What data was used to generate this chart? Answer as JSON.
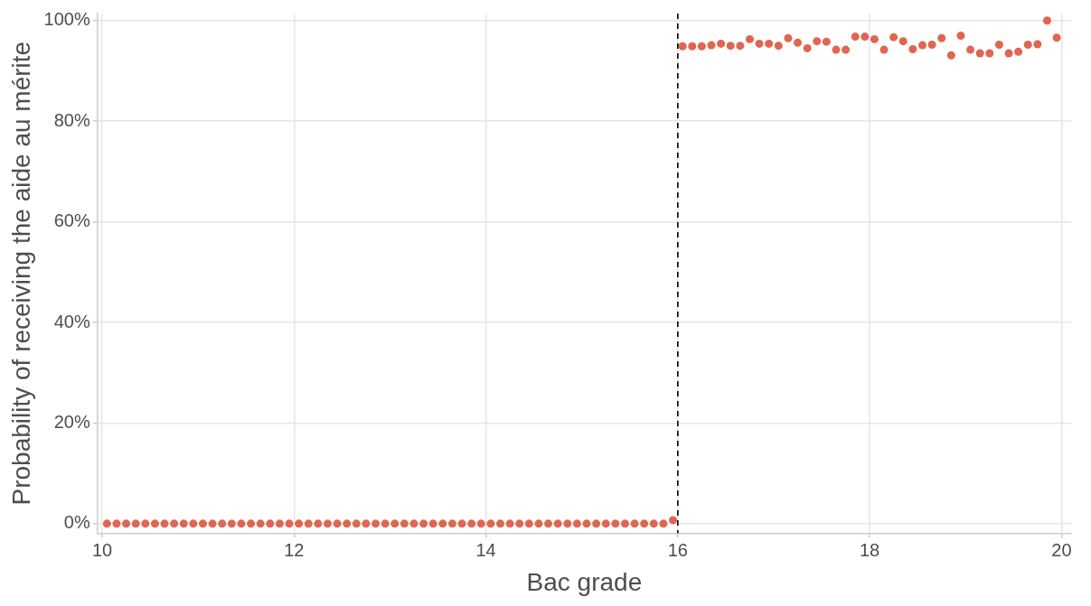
{
  "chart_data": {
    "type": "scatter",
    "xlabel": "Bac grade",
    "ylabel": "Probability of receiving the aide au mérite",
    "x": [
      10.05,
      10.15,
      10.25,
      10.35,
      10.45,
      10.55,
      10.65,
      10.75,
      10.85,
      10.95,
      11.05,
      11.15,
      11.25,
      11.35,
      11.45,
      11.55,
      11.65,
      11.75,
      11.85,
      11.95,
      12.05,
      12.15,
      12.25,
      12.35,
      12.45,
      12.55,
      12.65,
      12.75,
      12.85,
      12.95,
      13.05,
      13.15,
      13.25,
      13.35,
      13.45,
      13.55,
      13.65,
      13.75,
      13.85,
      13.95,
      14.05,
      14.15,
      14.25,
      14.35,
      14.45,
      14.55,
      14.65,
      14.75,
      14.85,
      14.95,
      15.05,
      15.15,
      15.25,
      15.35,
      15.45,
      15.55,
      15.65,
      15.75,
      15.85,
      15.95,
      16.05,
      16.15,
      16.25,
      16.35,
      16.45,
      16.55,
      16.65,
      16.75,
      16.85,
      16.95,
      17.05,
      17.15,
      17.25,
      17.35,
      17.45,
      17.55,
      17.65,
      17.75,
      17.85,
      17.95,
      18.05,
      18.15,
      18.25,
      18.35,
      18.45,
      18.55,
      18.65,
      18.75,
      18.85,
      18.95,
      19.05,
      19.15,
      19.25,
      19.35,
      19.45,
      19.55,
      19.65,
      19.75,
      19.85,
      19.95
    ],
    "series": [
      {
        "color": "#e06552",
        "values": [
          0,
          0,
          0,
          0,
          0,
          0,
          0,
          0,
          0,
          0,
          0,
          0,
          0,
          0,
          0,
          0,
          0,
          0,
          0,
          0,
          0,
          0,
          0,
          0,
          0,
          0,
          0,
          0,
          0,
          0,
          0,
          0,
          0,
          0,
          0,
          0,
          0,
          0,
          0,
          0,
          0,
          0,
          0,
          0,
          0,
          0,
          0,
          0,
          0,
          0,
          0,
          0,
          0,
          0,
          0,
          0,
          0,
          0,
          0,
          0.7,
          94.9,
          94.9,
          94.9,
          95.1,
          95.4,
          95.0,
          95.0,
          96.3,
          95.4,
          95.4,
          95.0,
          96.5,
          95.6,
          94.5,
          95.9,
          95.8,
          94.2,
          94.2,
          96.8,
          96.8,
          96.3,
          94.2,
          96.7,
          95.9,
          94.3,
          95.1,
          95.2,
          96.5,
          93.1,
          97.0,
          94.2,
          93.5,
          93.5,
          95.2,
          93.5,
          93.8,
          95.2,
          95.3,
          100,
          96.6
        ]
      }
    ],
    "xlim": [
      9.95,
      20.1
    ],
    "xticks": [
      10,
      12,
      14,
      16,
      18,
      20
    ],
    "ylim": [
      -1.9,
      101.4
    ],
    "yticks": [
      {
        "value": 0,
        "label": "0%"
      },
      {
        "value": 20,
        "label": "20%"
      },
      {
        "value": 40,
        "label": "40%"
      },
      {
        "value": 60,
        "label": "60%"
      },
      {
        "value": 80,
        "label": "80%"
      },
      {
        "value": 100,
        "label": "100%"
      }
    ],
    "ref_lines": [
      {
        "axis": "x",
        "value": 16,
        "color": "#000000",
        "line_style": "dashed"
      }
    ],
    "grid": true,
    "legend": false,
    "marker": "circle"
  }
}
